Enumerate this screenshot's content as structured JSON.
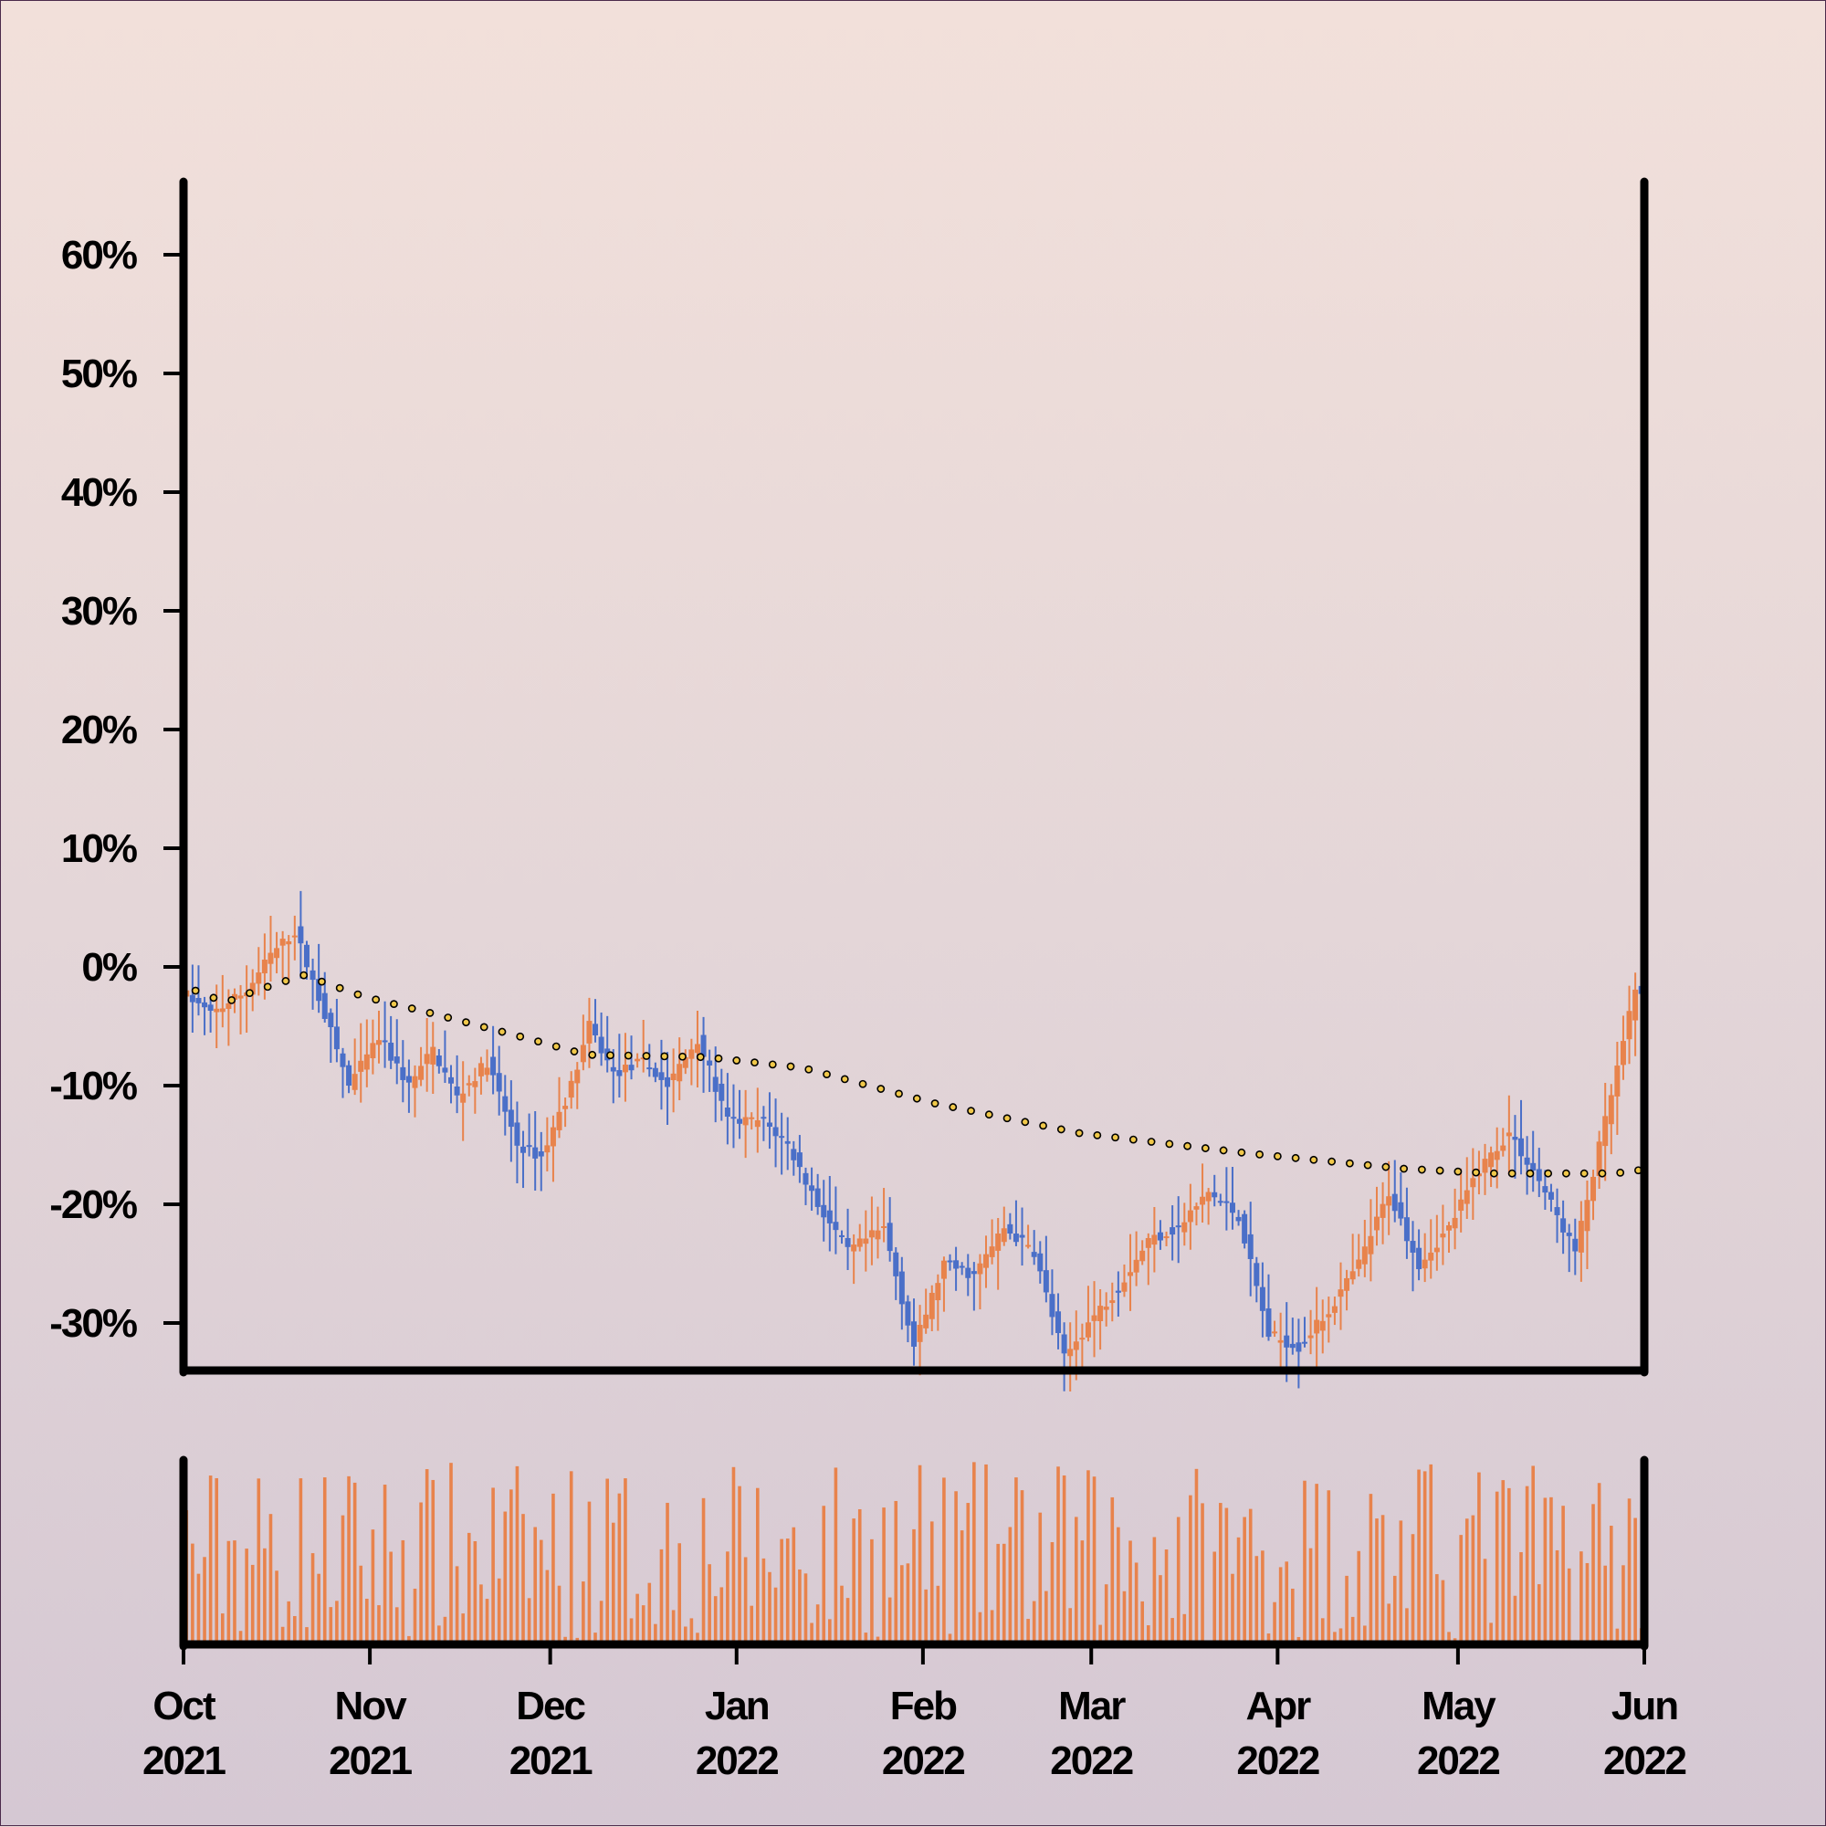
{
  "chart_data": {
    "type": "candlestick",
    "y_axis": {
      "ticks": [
        "-30%",
        "-20%",
        "-10%",
        "0%",
        "10%",
        "20%",
        "30%",
        "40%",
        "50%",
        "60%"
      ],
      "ylim": [
        -0.34,
        0.66
      ]
    },
    "x_axis": {
      "ticks": [
        {
          "month": "Oct",
          "year": "2021",
          "date": "2021-10-01"
        },
        {
          "month": "Nov",
          "year": "2021",
          "date": "2021-11-01"
        },
        {
          "month": "Dec",
          "year": "2021",
          "date": "2021-12-01"
        },
        {
          "month": "Jan",
          "year": "2022",
          "date": "2022-01-01"
        },
        {
          "month": "Feb",
          "year": "2022",
          "date": "2022-02-01"
        },
        {
          "month": "Mar",
          "year": "2022",
          "date": "2022-03-01"
        },
        {
          "month": "Apr",
          "year": "2022",
          "date": "2022-04-01"
        },
        {
          "month": "May",
          "year": "2022",
          "date": "2022-05-01"
        },
        {
          "month": "Jun",
          "year": "2022",
          "date": "2022-06-01"
        }
      ],
      "xlim": [
        "2021-10-01",
        "2022-06-01"
      ]
    },
    "colors": {
      "up": "#e8834c",
      "down": "#4a6fc8",
      "trend_fill": "#f0c84a",
      "trend_stroke": "#000000"
    },
    "price_keypoints": [
      [
        "2021-10-01",
        -0.02
      ],
      [
        "2021-10-06",
        -0.04
      ],
      [
        "2021-10-12",
        -0.02
      ],
      [
        "2021-10-16",
        0.01
      ],
      [
        "2021-10-20",
        0.03
      ],
      [
        "2021-10-25",
        -0.04
      ],
      [
        "2021-10-29",
        -0.1
      ],
      [
        "2021-11-03",
        -0.06
      ],
      [
        "2021-11-08",
        -0.1
      ],
      [
        "2021-11-12",
        -0.07
      ],
      [
        "2021-11-16",
        -0.11
      ],
      [
        "2021-11-21",
        -0.08
      ],
      [
        "2021-11-26",
        -0.15
      ],
      [
        "2021-11-30",
        -0.16
      ],
      [
        "2021-12-05",
        -0.1
      ],
      [
        "2021-12-08",
        -0.05
      ],
      [
        "2021-12-12",
        -0.09
      ],
      [
        "2021-12-17",
        -0.08
      ],
      [
        "2021-12-21",
        -0.1
      ],
      [
        "2021-12-26",
        -0.06
      ],
      [
        "2021-12-31",
        -0.13
      ],
      [
        "2022-01-06",
        -0.13
      ],
      [
        "2022-01-10",
        -0.15
      ],
      [
        "2022-01-15",
        -0.2
      ],
      [
        "2022-01-20",
        -0.24
      ],
      [
        "2022-01-26",
        -0.22
      ],
      [
        "2022-01-31",
        -0.32
      ],
      [
        "2022-02-05",
        -0.25
      ],
      [
        "2022-02-10",
        -0.26
      ],
      [
        "2022-02-15",
        -0.22
      ],
      [
        "2022-02-20",
        -0.24
      ],
      [
        "2022-02-25",
        -0.33
      ],
      [
        "2022-03-01",
        -0.3
      ],
      [
        "2022-03-06",
        -0.27
      ],
      [
        "2022-03-11",
        -0.23
      ],
      [
        "2022-03-16",
        -0.22
      ],
      [
        "2022-03-21",
        -0.19
      ],
      [
        "2022-03-26",
        -0.21
      ],
      [
        "2022-03-31",
        -0.31
      ],
      [
        "2022-04-05",
        -0.32
      ],
      [
        "2022-04-10",
        -0.29
      ],
      [
        "2022-04-15",
        -0.25
      ],
      [
        "2022-04-20",
        -0.19
      ],
      [
        "2022-04-25",
        -0.25
      ],
      [
        "2022-04-30",
        -0.22
      ],
      [
        "2022-05-05",
        -0.17
      ],
      [
        "2022-05-10",
        -0.14
      ],
      [
        "2022-05-15",
        -0.18
      ],
      [
        "2022-05-21",
        -0.24
      ],
      [
        "2022-05-26",
        -0.13
      ],
      [
        "2022-05-31",
        -0.02
      ]
    ],
    "trend_keypoints": [
      [
        "2021-10-01",
        -0.02
      ],
      [
        "2021-10-06",
        -0.03
      ],
      [
        "2021-10-11",
        -0.02
      ],
      [
        "2021-10-19",
        -0.007
      ],
      [
        "2021-10-29",
        -0.025
      ],
      [
        "2021-11-10",
        -0.04
      ],
      [
        "2021-11-25",
        -0.06
      ],
      [
        "2021-12-05",
        -0.074
      ],
      [
        "2021-12-15",
        -0.075
      ],
      [
        "2021-12-25",
        -0.076
      ],
      [
        "2022-01-10",
        -0.085
      ],
      [
        "2022-02-01",
        -0.115
      ],
      [
        "2022-02-25",
        -0.14
      ],
      [
        "2022-03-25",
        -0.157
      ],
      [
        "2022-04-20",
        -0.17
      ],
      [
        "2022-05-05",
        -0.174
      ],
      [
        "2022-05-25",
        -0.174
      ],
      [
        "2022-05-31",
        -0.17
      ]
    ],
    "volume": {
      "min": 0.02,
      "max": 1.0
    }
  }
}
